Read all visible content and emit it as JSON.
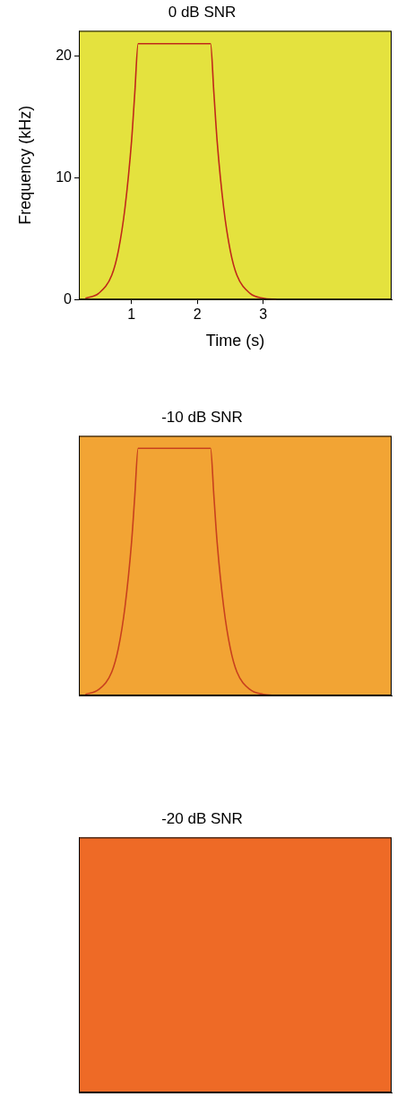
{
  "chart_data": [
    {
      "type": "line",
      "title": "0 dB SNR",
      "x_label": "Time (s)",
      "y_label": "Frequency (kHz)",
      "xlim": [
        0.2,
        4.95
      ],
      "ylim": [
        0,
        22.05
      ],
      "xticks": [
        1,
        2,
        3
      ],
      "yticks": [
        0,
        10,
        20
      ],
      "grid": false,
      "x": [
        0.3,
        0.5,
        0.7,
        0.8,
        0.9,
        1.0,
        1.05,
        1.1,
        2.2,
        2.25,
        2.3,
        2.4,
        2.5,
        2.6,
        2.8,
        3.0,
        3.2
      ],
      "series": [
        {
          "color": "#c0281a",
          "values": [
            0.1,
            0.5,
            2,
            4,
            7.5,
            13,
            17,
            21,
            21,
            17,
            13,
            7.5,
            4,
            2,
            0.5,
            0.1,
            0
          ]
        }
      ]
    },
    {
      "type": "line",
      "title": "-10 dB SNR",
      "xlim": [
        0.2,
        4.95
      ],
      "ylim": [
        0,
        22.05
      ],
      "tick_labels": false,
      "grid": false,
      "x": [
        0.3,
        0.5,
        0.7,
        0.8,
        0.9,
        1.0,
        1.05,
        1.1,
        2.2,
        2.25,
        2.3,
        2.4,
        2.5,
        2.6,
        2.8,
        3.0,
        3.2
      ],
      "series": [
        {
          "color": "#c8401e",
          "values": [
            0.1,
            0.5,
            2,
            4,
            7.5,
            13,
            17,
            21,
            21,
            17,
            13,
            7.5,
            4,
            2,
            0.5,
            0.1,
            0
          ]
        }
      ]
    },
    {
      "type": "line",
      "title": "-20 dB SNR",
      "xlim": [
        0.2,
        4.95
      ],
      "ylim": [
        0,
        22.05
      ],
      "tick_labels": false,
      "grid": false
    }
  ]
}
